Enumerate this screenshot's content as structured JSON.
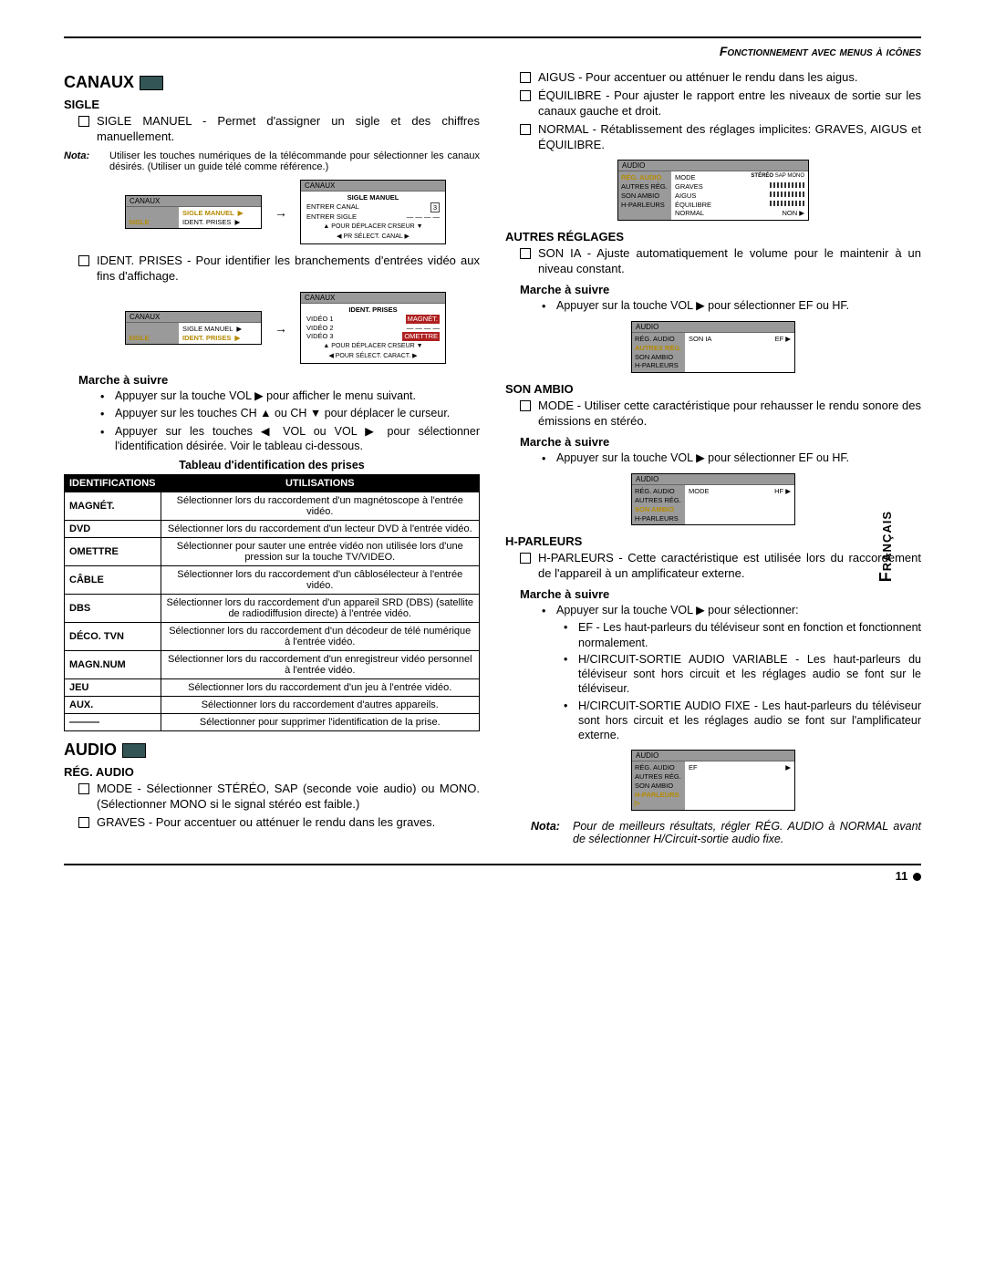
{
  "header": {
    "title": "Fonctionnement avec menus à icônes"
  },
  "lang_tab": "Français",
  "page_number": "11",
  "canaux": {
    "title": "CANAUX",
    "sigle": {
      "heading": "SIGLE",
      "item1": "SIGLE MANUEL - Permet d'assigner un sigle et des chiffres manuellement.",
      "nota_label": "Nota:",
      "nota_text": "Utiliser les touches numériques de la télécommande pour sélectionner les canaux désirés. (Utiliser un guide télé comme référence.)",
      "fig1": {
        "box1": {
          "header": "CANAUX",
          "side": [
            "",
            "SIGLE"
          ],
          "side_items": [
            "SIGLE MANUEL",
            "IDENT. PRISES"
          ],
          "side_sel": "SIGLE MANUEL"
        },
        "box2": {
          "header": "CANAUX",
          "title": "SIGLE MANUEL",
          "rows": [
            "ENTRER CANAL",
            "ENTRER SIGLE"
          ],
          "val": "3",
          "dashes": "— — — —",
          "footer1": "▲ POUR DÉPLACER CRSEUR ▼",
          "footer2": "◀ PR SÉLECT. CANAL ▶"
        }
      },
      "item2": "IDENT. PRISES - Pour identifier les branchements d'entrées vidéo aux fins d'affichage.",
      "fig2": {
        "box1": {
          "header": "CANAUX",
          "side": [
            "",
            "SIGLE"
          ],
          "side_items": [
            "SIGLE MANUEL",
            "IDENT. PRISES"
          ],
          "side_sel": "IDENT. PRISES"
        },
        "box2": {
          "header": "CANAUX",
          "title": "IDENT. PRISES",
          "rows": [
            [
              "VIDÉO 1",
              "MAGNÉT."
            ],
            [
              "VIDÉO 2",
              "— — — —"
            ],
            [
              "VIDÉO 3",
              "OMETTRE"
            ]
          ],
          "footer1": "▲ POUR DÉPLACER CRSEUR ▼",
          "footer2": "◀ POUR SÉLECT. CARACT. ▶"
        }
      }
    },
    "marche": {
      "heading": "Marche à suivre",
      "b1": "Appuyer sur la touche VOL ▶ pour afficher le menu suivant.",
      "b2": "Appuyer sur les touches CH ▲ ou CH ▼ pour déplacer le curseur.",
      "b3": "Appuyer sur les touches ◀ VOL ou VOL ▶ pour sélectionner l'identification désirée. Voir le tableau ci-dessous."
    },
    "table": {
      "title": "Tableau d'identification des prises",
      "h1": "IDENTIFICATIONS",
      "h2": "UTILISATIONS",
      "rows": [
        [
          "MAGNÉT.",
          "Sélectionner lors du raccordement d'un magnétoscope à l'entrée vidéo."
        ],
        [
          "DVD",
          "Sélectionner lors du raccordement d'un lecteur DVD à l'entrée vidéo."
        ],
        [
          "OMETTRE",
          "Sélectionner pour sauter une entrée vidéo non utilisée lors d'une pression sur la touche TV/VIDEO."
        ],
        [
          "CÂBLE",
          "Sélectionner lors du raccordement d'un câblosélecteur à l'entrée vidéo."
        ],
        [
          "DBS",
          "Sélectionner lors du raccordement d'un appareil SRD (DBS) (satellite de radiodiffusion directe) à l'entrée vidéo."
        ],
        [
          "DÉCO. TVN",
          "Sélectionner lors du raccordement d'un décodeur de télé numérique à l'entrée vidéo."
        ],
        [
          "MAGN.NUM",
          "Sélectionner lors du raccordement d'un enregistreur vidéo personnel à l'entrée vidéo."
        ],
        [
          "JEU",
          "Sélectionner lors du raccordement d'un jeu à l'entrée vidéo."
        ],
        [
          "AUX.",
          "Sélectionner lors du raccordement d'autres appareils."
        ],
        [
          "———",
          "Sélectionner pour supprimer l'identification de la prise."
        ]
      ]
    }
  },
  "audio": {
    "title": "AUDIO",
    "reg": {
      "heading": "RÉG. AUDIO",
      "item1": "MODE - Sélectionner STÉRÉO, SAP (seconde voie audio) ou MONO. (Sélectionner MONO si le signal stéréo est faible.)",
      "item2": "GRAVES - Pour accentuer ou atténuer le rendu dans les graves.",
      "item3": "AIGUS - Pour accentuer ou atténuer le rendu dans les aigus.",
      "item4": "ÉQUILIBRE - Pour ajuster le rapport entre les niveaux de sortie sur les canaux gauche et droit.",
      "item5": "NORMAL - Rétablissement des réglages implicites: GRAVES, AIGUS et ÉQUILIBRE.",
      "fig": {
        "header": "AUDIO",
        "side": [
          "RÉG. AUDIO",
          "AUTRES RÉG.",
          "SON AMBIO",
          "H-PARLEURS"
        ],
        "sel": "RÉG. AUDIO",
        "rows": [
          [
            "MODE",
            "STÉRÉO SAP MONO"
          ],
          [
            "GRAVES",
            "bar"
          ],
          [
            "AIGUS",
            "bar"
          ],
          [
            "ÉQUILIBRE",
            "bar"
          ],
          [
            "NORMAL",
            "NON ▶"
          ]
        ]
      }
    },
    "autres": {
      "heading": "AUTRES RÉGLAGES",
      "item1": "SON IA - Ajuste automatiquement le volume pour le maintenir à un niveau constant.",
      "marche": "Marche à suivre",
      "b1": "Appuyer sur la touche VOL ▶ pour sélectionner EF ou HF.",
      "fig": {
        "header": "AUDIO",
        "side": [
          "RÉG. AUDIO",
          "AUTRES RÉG.",
          "SON AMBIO",
          "H-PARLEURS"
        ],
        "sel": "AUTRES RÉG.",
        "rows": [
          [
            "SON IA",
            "EF ▶"
          ]
        ]
      }
    },
    "sonambio": {
      "heading": "SON AMBIO",
      "item1": "MODE - Utiliser cette caractéristique pour rehausser le rendu sonore des émissions en stéréo.",
      "marche": "Marche à suivre",
      "b1": "Appuyer sur la touche VOL ▶ pour sélectionner EF ou HF.",
      "fig": {
        "header": "AUDIO",
        "side": [
          "RÉG. AUDIO",
          "AUTRES RÉG.",
          "SON AMBIO",
          "H-PARLEURS"
        ],
        "sel": "SON AMBIO",
        "rows": [
          [
            "MODE",
            "HF ▶"
          ]
        ]
      }
    },
    "hparleurs": {
      "heading": "H-PARLEURS",
      "item1": "H-PARLEURS - Cette caractéristique est utilisée lors du raccordement de l'appareil à un amplificateur externe.",
      "marche": "Marche à suivre",
      "b1": "Appuyer sur la touche VOL ▶ pour sélectionner:",
      "sb1": "EF - Les haut-parleurs du téléviseur sont en fonction et fonctionnent normalement.",
      "sb2": "H/CIRCUIT-SORTIE AUDIO VARIABLE - Les haut-parleurs du téléviseur sont hors circuit et les réglages audio se font sur le téléviseur.",
      "sb3": "H/CIRCUIT-SORTIE AUDIO FIXE - Les haut-parleurs du téléviseur sont hors circuit et les réglages audio se font sur l'amplificateur externe.",
      "fig": {
        "header": "AUDIO",
        "side": [
          "RÉG. AUDIO",
          "AUTRES RÉG.",
          "SON AMBIO",
          "H-PARLEURS"
        ],
        "sel": "H-PARLEURS",
        "rows": [
          [
            "EF",
            "▶"
          ]
        ]
      },
      "nota_label": "Nota:",
      "nota_text": "Pour de meilleurs résultats, régler RÉG. AUDIO à NORMAL avant de sélectionner H/Circuit-sortie audio fixe."
    }
  }
}
